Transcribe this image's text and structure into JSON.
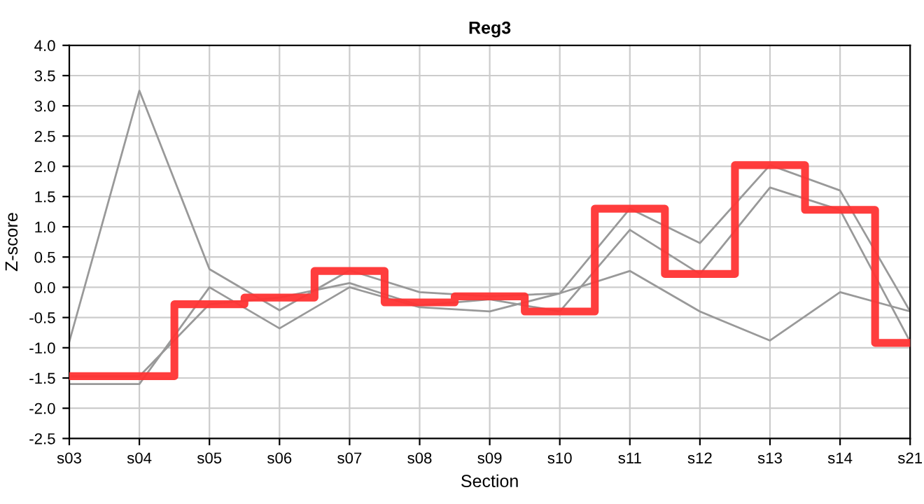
{
  "chart_data": {
    "type": "line",
    "title": "Reg3",
    "xlabel": "Section",
    "ylabel": "Z-score",
    "categories": [
      "s03",
      "s04",
      "s05",
      "s06",
      "s07",
      "s08",
      "s09",
      "s10",
      "s11",
      "s12",
      "s13",
      "s14",
      "s21"
    ],
    "series": [
      {
        "color": "#999999",
        "values": [
          -0.9,
          3.25,
          0.3,
          -0.38,
          0.28,
          -0.08,
          -0.15,
          -0.1,
          1.3,
          0.73,
          2.02,
          1.6,
          -0.4
        ]
      },
      {
        "color": "#999999",
        "values": [
          -1.6,
          -1.6,
          0.0,
          -0.68,
          0.0,
          -0.33,
          -0.4,
          -0.1,
          0.27,
          -0.4,
          -0.88,
          -0.08,
          -0.4
        ]
      },
      {
        "color": "#999999",
        "values": [
          -1.47,
          -1.47,
          -0.28,
          -0.17,
          0.07,
          -0.3,
          -0.2,
          -0.4,
          0.95,
          0.22,
          1.65,
          1.28,
          -0.9
        ]
      },
      {
        "type": "step",
        "color": "#ff3333",
        "values": [
          -1.47,
          -1.47,
          -0.28,
          -0.17,
          0.27,
          -0.25,
          -0.15,
          -0.4,
          1.3,
          0.22,
          2.02,
          1.28,
          -0.92
        ]
      }
    ],
    "ylim": [
      -2.5,
      4.0
    ],
    "yticks": [
      {
        "value": -2.5,
        "label": "-2.5"
      },
      {
        "value": -2.0,
        "label": "-2.0"
      },
      {
        "value": -1.5,
        "label": "-1.5"
      },
      {
        "value": -1.0,
        "label": "-1.0"
      },
      {
        "value": -0.5,
        "label": "-0.5"
      },
      {
        "value": 0.0,
        "label": "0.0"
      },
      {
        "value": 0.5,
        "label": "0.5"
      },
      {
        "value": 1.0,
        "label": "1.0"
      },
      {
        "value": 1.5,
        "label": "1.5"
      },
      {
        "value": 2.0,
        "label": "2.0"
      },
      {
        "value": 2.5,
        "label": "2.5"
      },
      {
        "value": 3.0,
        "label": "3.0"
      },
      {
        "value": 3.5,
        "label": "3.5"
      },
      {
        "value": 4.0,
        "label": "4.0"
      }
    ],
    "grid": true
  }
}
